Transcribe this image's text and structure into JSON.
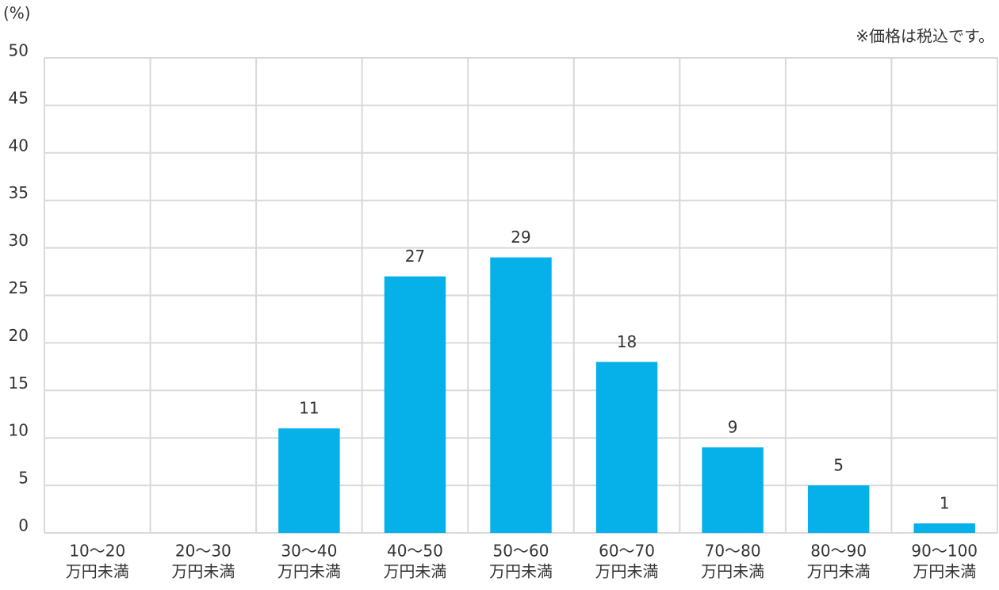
{
  "chart_data": {
    "type": "bar",
    "y_axis_label": "(%)",
    "note": "※価格は税込です。",
    "categories": [
      [
        "10～20",
        "万円未満"
      ],
      [
        "20～30",
        "万円未満"
      ],
      [
        "30～40",
        "万円未満"
      ],
      [
        "40～50",
        "万円未満"
      ],
      [
        "50～60",
        "万円未満"
      ],
      [
        "60～70",
        "万円未満"
      ],
      [
        "70～80",
        "万円未満"
      ],
      [
        "80～90",
        "万円未満"
      ],
      [
        "90～100",
        "万円未満"
      ]
    ],
    "values": [
      0,
      0,
      11,
      27,
      29,
      18,
      9,
      5,
      1
    ],
    "value_labels": [
      null,
      null,
      "11",
      "27",
      "29",
      "18",
      "9",
      "5",
      "1"
    ],
    "color": "#05b1e8",
    "ylim": [
      0,
      50
    ],
    "yticks": [
      0,
      5,
      10,
      15,
      20,
      25,
      30,
      35,
      40,
      45,
      50
    ],
    "grid": true
  }
}
